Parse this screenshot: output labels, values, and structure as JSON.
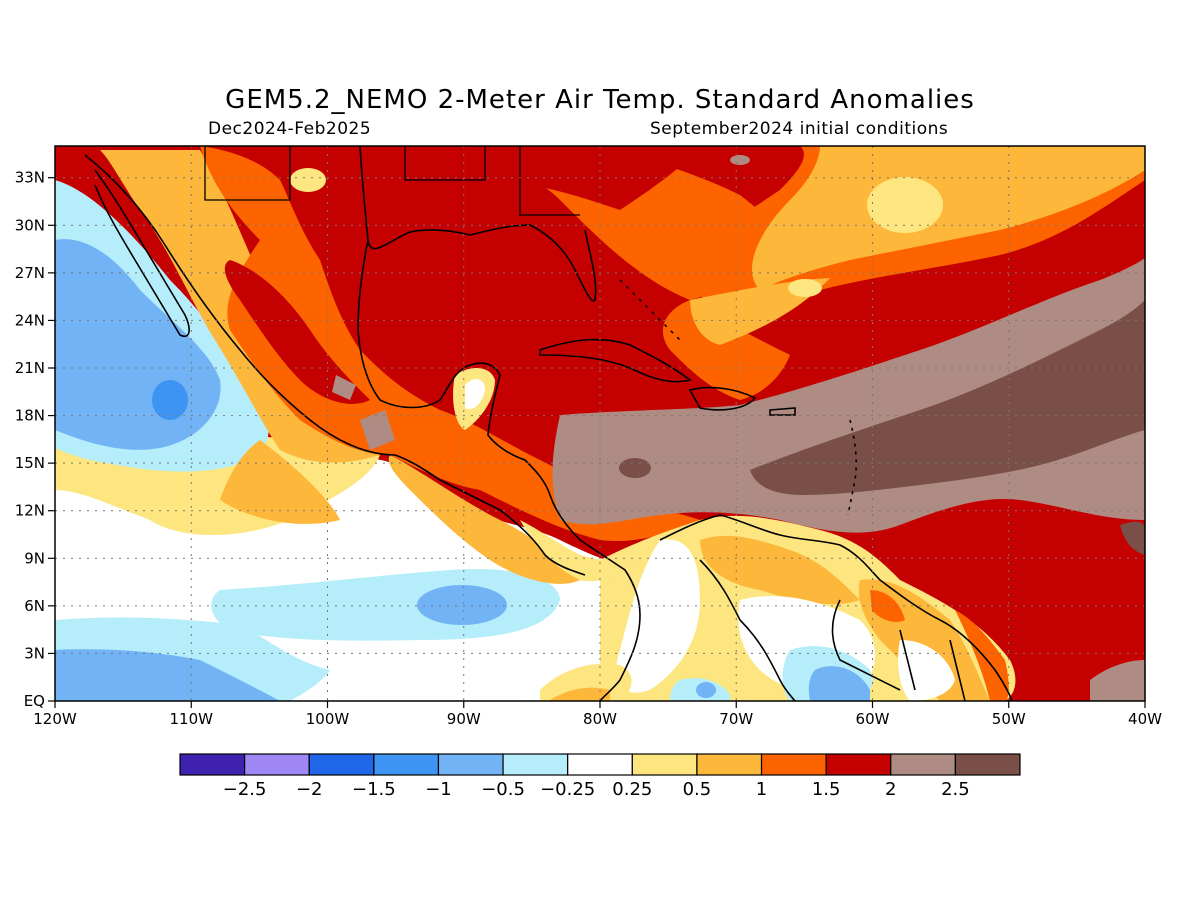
{
  "title": "GEM5.2_NEMO 2-Meter Air Temp. Standard Anomalies",
  "subtitle_left": "Dec2024-Feb2025",
  "subtitle_right": "September2024 initial conditions",
  "map": {
    "lon_range": [
      -120,
      -40
    ],
    "lat_range": [
      0,
      35
    ],
    "x_ticks": [
      {
        "value": -120,
        "label": "120W"
      },
      {
        "value": -110,
        "label": "110W"
      },
      {
        "value": -100,
        "label": "100W"
      },
      {
        "value": -90,
        "label": "90W"
      },
      {
        "value": -80,
        "label": "80W"
      },
      {
        "value": -70,
        "label": "70W"
      },
      {
        "value": -60,
        "label": "60W"
      },
      {
        "value": -50,
        "label": "50W"
      },
      {
        "value": -40,
        "label": "40W"
      }
    ],
    "y_ticks": [
      {
        "value": 0,
        "label": "EQ"
      },
      {
        "value": 3,
        "label": "3N"
      },
      {
        "value": 6,
        "label": "6N"
      },
      {
        "value": 9,
        "label": "9N"
      },
      {
        "value": 12,
        "label": "12N"
      },
      {
        "value": 15,
        "label": "15N"
      },
      {
        "value": 18,
        "label": "18N"
      },
      {
        "value": 21,
        "label": "21N"
      },
      {
        "value": 24,
        "label": "24N"
      },
      {
        "value": 27,
        "label": "27N"
      },
      {
        "value": 30,
        "label": "30N"
      },
      {
        "value": 33,
        "label": "33N"
      }
    ],
    "grid": "dotted"
  },
  "colorbar": {
    "colors": [
      "#3f21b0",
      "#9f87f5",
      "#2066e8",
      "#3e94f2",
      "#72b3f5",
      "#b5eefa",
      "#ffffff",
      "#fde57f",
      "#fdb73a",
      "#fd6400",
      "#c50000",
      "#ae8c84",
      "#7a4f48"
    ],
    "labels": [
      "-2.5",
      "-2",
      "-1.5",
      "-1",
      "-0.5",
      "-0.25",
      "0.25",
      "0.5",
      "1",
      "1.5",
      "2",
      "2.5"
    ]
  },
  "colors": {
    "strong_warm": "#c50000",
    "warm": "#fd6400",
    "mild_warm": "#fdb73a",
    "weak_warm": "#fde57f",
    "extreme_warm": "#ae8c84",
    "max_warm": "#7a4f48",
    "weak_cool": "#b5eefa",
    "cool": "#72b3f5",
    "mod_cool": "#3e94f2"
  }
}
